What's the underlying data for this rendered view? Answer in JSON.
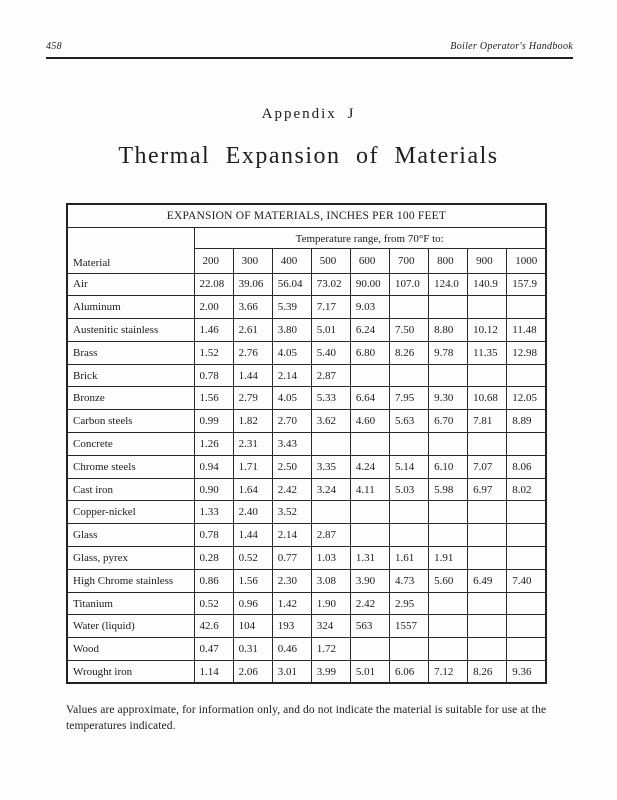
{
  "page": {
    "page_number": "458",
    "running_header": "Boiler Operator's Handbook"
  },
  "heading": {
    "appendix": "Appendix J",
    "title": "Thermal Expansion of Materials"
  },
  "table": {
    "title": "EXPANSION OF MATERIALS, INCHES PER 100 FEET",
    "material_header": "Material",
    "temp_range_header": "Temperature range, from 70°F to:",
    "temperature_columns": [
      "200",
      "300",
      "400",
      "500",
      "600",
      "700",
      "800",
      "900",
      "1000"
    ],
    "rows": [
      {
        "material": "Air",
        "values": [
          "22.08",
          "39.06",
          "56.04",
          "73.02",
          "90.00",
          "107.0",
          "124.0",
          "140.9",
          "157.9"
        ]
      },
      {
        "material": "Aluminum",
        "values": [
          "2.00",
          "3.66",
          "5.39",
          "7.17",
          "9.03",
          "",
          "",
          "",
          ""
        ]
      },
      {
        "material": "Austenitic stainless",
        "values": [
          "1.46",
          "2.61",
          "3.80",
          "5.01",
          "6.24",
          "7.50",
          "8.80",
          "10.12",
          "11.48"
        ]
      },
      {
        "material": "Brass",
        "values": [
          "1.52",
          "2.76",
          "4.05",
          "5.40",
          "6.80",
          "8.26",
          "9.78",
          "11.35",
          "12.98"
        ]
      },
      {
        "material": "Brick",
        "values": [
          "0.78",
          "1.44",
          "2.14",
          "2.87",
          "",
          "",
          "",
          "",
          ""
        ]
      },
      {
        "material": "Bronze",
        "values": [
          "1.56",
          "2.79",
          "4.05",
          "5.33",
          "6.64",
          "7.95",
          "9.30",
          "10.68",
          "12.05"
        ]
      },
      {
        "material": "Carbon steels",
        "values": [
          "0.99",
          "1.82",
          "2.70",
          "3.62",
          "4.60",
          "5.63",
          "6.70",
          "7.81",
          "8.89"
        ]
      },
      {
        "material": "Concrete",
        "values": [
          "1.26",
          "2.31",
          "3.43",
          "",
          "",
          "",
          "",
          "",
          ""
        ]
      },
      {
        "material": "Chrome steels",
        "values": [
          "0.94",
          "1.71",
          "2.50",
          "3.35",
          "4.24",
          "5.14",
          "6.10",
          "7.07",
          "8.06"
        ]
      },
      {
        "material": "Cast iron",
        "values": [
          "0.90",
          "1.64",
          "2.42",
          "3.24",
          "4.11",
          "5.03",
          "5.98",
          "6.97",
          "8.02"
        ]
      },
      {
        "material": "Copper-nickel",
        "values": [
          "1.33",
          "2.40",
          "3.52",
          "",
          "",
          "",
          "",
          "",
          ""
        ]
      },
      {
        "material": "Glass",
        "values": [
          "0.78",
          "1.44",
          "2.14",
          "2.87",
          "",
          "",
          "",
          "",
          ""
        ]
      },
      {
        "material": "Glass, pyrex",
        "values": [
          "0.28",
          "0.52",
          "0.77",
          "1.03",
          "1.31",
          "1.61",
          "1.91",
          "",
          ""
        ]
      },
      {
        "material": "High Chrome stainless",
        "values": [
          "0.86",
          "1.56",
          "2.30",
          "3.08",
          "3.90",
          "4.73",
          "5.60",
          "6.49",
          "7.40"
        ]
      },
      {
        "material": "Titanium",
        "values": [
          "0.52",
          "0.96",
          "1.42",
          "1.90",
          "2.42",
          "2.95",
          "",
          "",
          ""
        ]
      },
      {
        "material": "Water (liquid)",
        "values": [
          "42.6",
          "104",
          "193",
          "324",
          "563",
          "1557",
          "",
          "",
          ""
        ]
      },
      {
        "material": "Wood",
        "values": [
          "0.47",
          "0.31",
          "0.46",
          "1.72",
          "",
          "",
          "",
          "",
          ""
        ]
      },
      {
        "material": "Wrought iron",
        "values": [
          "1.14",
          "2.06",
          "3.01",
          "3.99",
          "5.01",
          "6.06",
          "7.12",
          "8.26",
          "9.36"
        ]
      }
    ]
  },
  "footnote": "Values are approximate, for information only, and do not indicate the material is suitable for use at the temperatures indicated."
}
